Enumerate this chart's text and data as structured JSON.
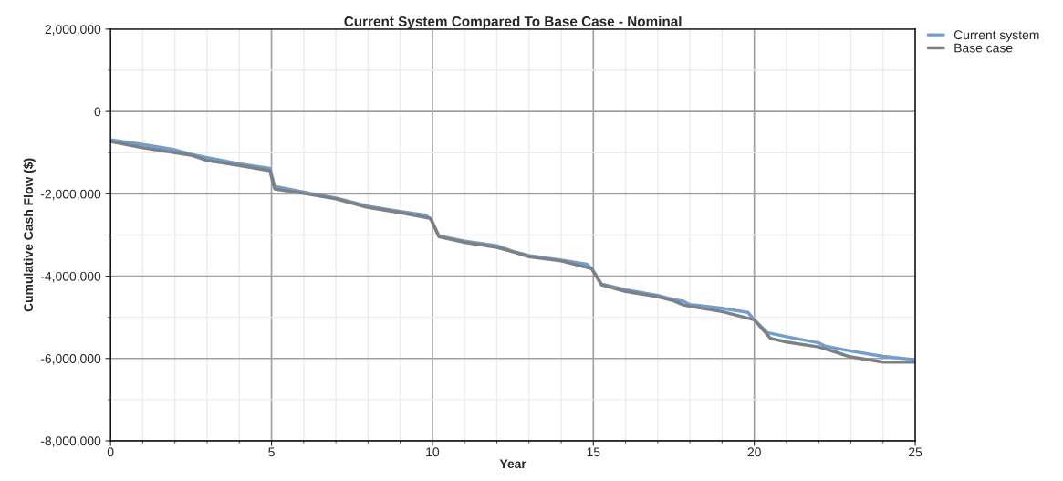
{
  "chart_data": {
    "type": "line",
    "title": "Current System Compared To Base Case - Nominal",
    "xlabel": "Year",
    "ylabel": "Cumulative Cash Flow ($)",
    "series": [
      {
        "name": "Current system",
        "color": "#6e9fd2",
        "x": [
          0,
          1,
          2,
          2.5,
          3,
          4,
          4.95,
          5.1,
          6,
          7,
          8,
          9,
          9.8,
          9.95,
          10.2,
          11,
          12,
          12.5,
          13,
          14,
          14.8,
          14.95,
          15.25,
          16,
          17,
          17.5,
          17.8,
          18,
          19,
          19.8,
          20,
          20.4,
          21,
          22,
          22.2,
          23,
          24,
          25
        ],
        "values": [
          -690000,
          -800000,
          -930000,
          -1040000,
          -1120000,
          -1270000,
          -1380000,
          -1820000,
          -1960000,
          -2100000,
          -2300000,
          -2430000,
          -2520000,
          -2620000,
          -3020000,
          -3150000,
          -3260000,
          -3400000,
          -3500000,
          -3610000,
          -3710000,
          -3820000,
          -4190000,
          -4330000,
          -4470000,
          -4570000,
          -4610000,
          -4690000,
          -4780000,
          -4880000,
          -5060000,
          -5370000,
          -5470000,
          -5620000,
          -5700000,
          -5820000,
          -5950000,
          -6030000
        ]
      },
      {
        "name": "Base case",
        "color": "#808080",
        "x": [
          0,
          1,
          2,
          2.5,
          3,
          4,
          4.95,
          5.1,
          6,
          7,
          8,
          9,
          9.95,
          10.2,
          11,
          12,
          12.5,
          13,
          14,
          14.95,
          15.25,
          16,
          17,
          17.5,
          17.8,
          18,
          19,
          20,
          20.5,
          21,
          22,
          22.55,
          22.85,
          23,
          24,
          25
        ],
        "values": [
          -730000,
          -880000,
          -1000000,
          -1060000,
          -1190000,
          -1310000,
          -1440000,
          -1880000,
          -1990000,
          -2120000,
          -2330000,
          -2460000,
          -2600000,
          -3040000,
          -3180000,
          -3300000,
          -3410000,
          -3530000,
          -3630000,
          -3820000,
          -4210000,
          -4370000,
          -4500000,
          -4600000,
          -4700000,
          -4730000,
          -4860000,
          -5060000,
          -5510000,
          -5600000,
          -5720000,
          -5850000,
          -5930000,
          -5960000,
          -6090000,
          -6090000
        ]
      }
    ],
    "xlim": [
      0,
      25
    ],
    "ylim": [
      -8000000,
      2000000
    ],
    "xticks": [
      0,
      {
        "value": 1,
        "label": null
      },
      {
        "value": 2,
        "label": null
      },
      {
        "value": 3,
        "label": null
      },
      {
        "value": 4,
        "label": null
      },
      5,
      {
        "value": 6,
        "label": null
      },
      {
        "value": 7,
        "label": null
      },
      {
        "value": 8,
        "label": null
      },
      {
        "value": 9,
        "label": null
      },
      10,
      {
        "value": 11,
        "label": null
      },
      {
        "value": 12,
        "label": null
      },
      {
        "value": 13,
        "label": null
      },
      {
        "value": 14,
        "label": null
      },
      15,
      {
        "value": 16,
        "label": null
      },
      {
        "value": 17,
        "label": null
      },
      {
        "value": 18,
        "label": null
      },
      {
        "value": 19,
        "label": null
      },
      20,
      {
        "value": 21,
        "label": null
      },
      {
        "value": 22,
        "label": null
      },
      {
        "value": 23,
        "label": null
      },
      {
        "value": 24,
        "label": null
      },
      25
    ],
    "yticks": [
      {
        "value": -8000000,
        "label": "-8,000,000"
      },
      {
        "value": -7000000,
        "label": null
      },
      {
        "value": -6000000,
        "label": "-6,000,000"
      },
      {
        "value": -5000000,
        "label": null
      },
      {
        "value": -4000000,
        "label": "-4,000,000"
      },
      {
        "value": -3000000,
        "label": null
      },
      {
        "value": -2000000,
        "label": "-2,000,000"
      },
      {
        "value": -1000000,
        "label": null
      },
      0,
      {
        "value": 1000000,
        "label": null
      },
      {
        "value": 2000000,
        "label": "2,000,000"
      }
    ],
    "grid": true,
    "legend": "top right",
    "line_style": "solid",
    "marker": "none"
  }
}
